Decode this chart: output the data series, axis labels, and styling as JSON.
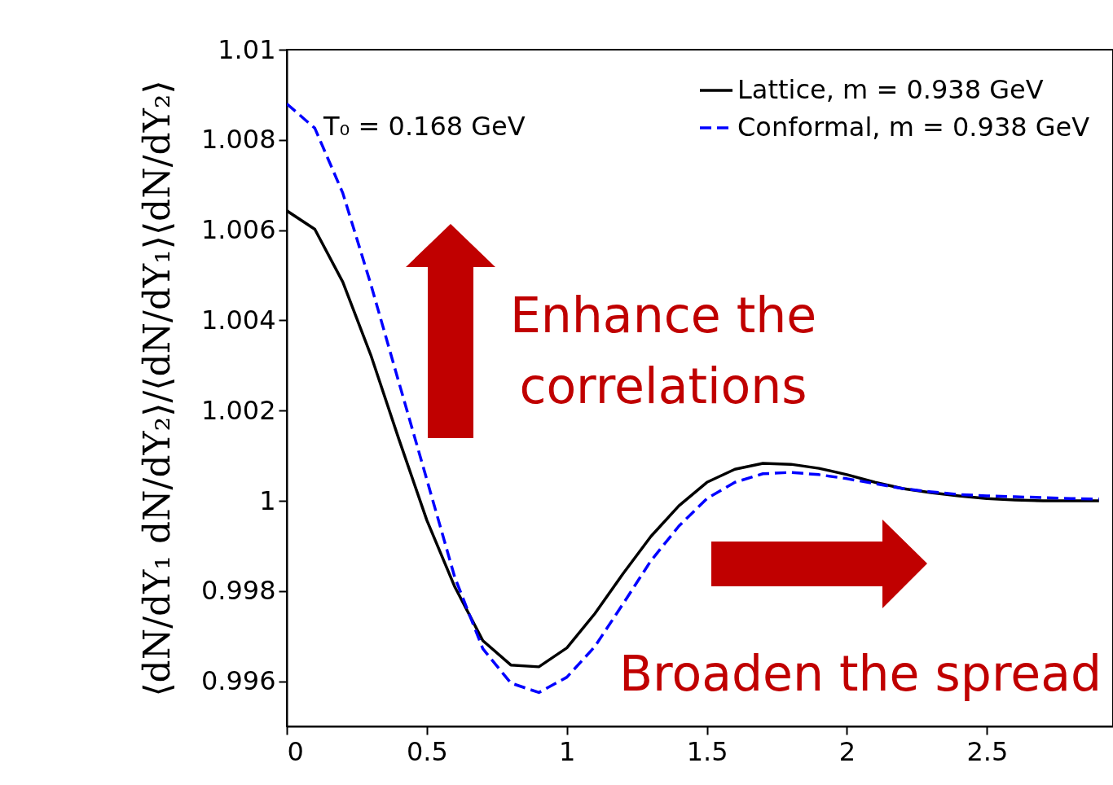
{
  "chart_data": {
    "type": "line",
    "ylabel": "⟨dN/dY₁ dN/dY₂⟩/⟨dN/dY₁⟩⟨dN/dY₂⟩",
    "x": [
      0,
      0.1,
      0.2,
      0.3,
      0.4,
      0.5,
      0.6,
      0.7,
      0.8,
      0.9,
      1.0,
      1.1,
      1.2,
      1.3,
      1.4,
      1.5,
      1.6,
      1.7,
      1.8,
      1.9,
      2.0,
      2.1,
      2.2,
      2.3,
      2.4,
      2.5,
      2.6,
      2.7,
      2.8,
      2.9
    ],
    "series": [
      {
        "name": "Lattice, m = 0.938 GeV",
        "color": "#000000",
        "line_style": "solid",
        "values": [
          1.00643,
          1.00602,
          1.00485,
          1.00323,
          1.00137,
          0.99957,
          0.99809,
          0.9969,
          0.99636,
          0.99632,
          0.99674,
          0.9975,
          0.99838,
          0.99921,
          0.99989,
          1.00041,
          1.0007,
          1.00083,
          1.00081,
          1.00072,
          1.00058,
          1.00041,
          1.00027,
          1.00018,
          1.00011,
          1.00005,
          1.00002,
          1.0,
          1.0,
          1.0
        ]
      },
      {
        "name": "Conformal, m = 0.938 GeV",
        "color": "#0000ff",
        "line_style": "dashed",
        "values": [
          1.0088,
          1.00826,
          1.00682,
          1.0048,
          1.00263,
          1.00047,
          0.9983,
          0.99672,
          0.99596,
          0.99575,
          0.99609,
          0.99677,
          0.99771,
          0.99867,
          0.99944,
          1.00005,
          1.00041,
          1.0006,
          1.00063,
          1.00058,
          1.00049,
          1.00038,
          1.00027,
          1.0002,
          1.00014,
          1.00011,
          1.00009,
          1.00007,
          1.00005,
          1.00004
        ]
      }
    ],
    "xlim": [
      0,
      2.95
    ],
    "xticks": [
      0,
      0.5,
      1,
      1.5,
      2,
      2.5
    ],
    "ylim": [
      0.995,
      1.01
    ],
    "yticks": [
      0.996,
      0.998,
      1,
      1.002,
      1.004,
      1.006,
      1.008,
      1.01
    ],
    "grid": false,
    "legend": "top right",
    "marker": "none",
    "annotations": [
      "T₀ = 0.168 GeV",
      "Enhance the correlations",
      "Broaden the spread"
    ]
  }
}
